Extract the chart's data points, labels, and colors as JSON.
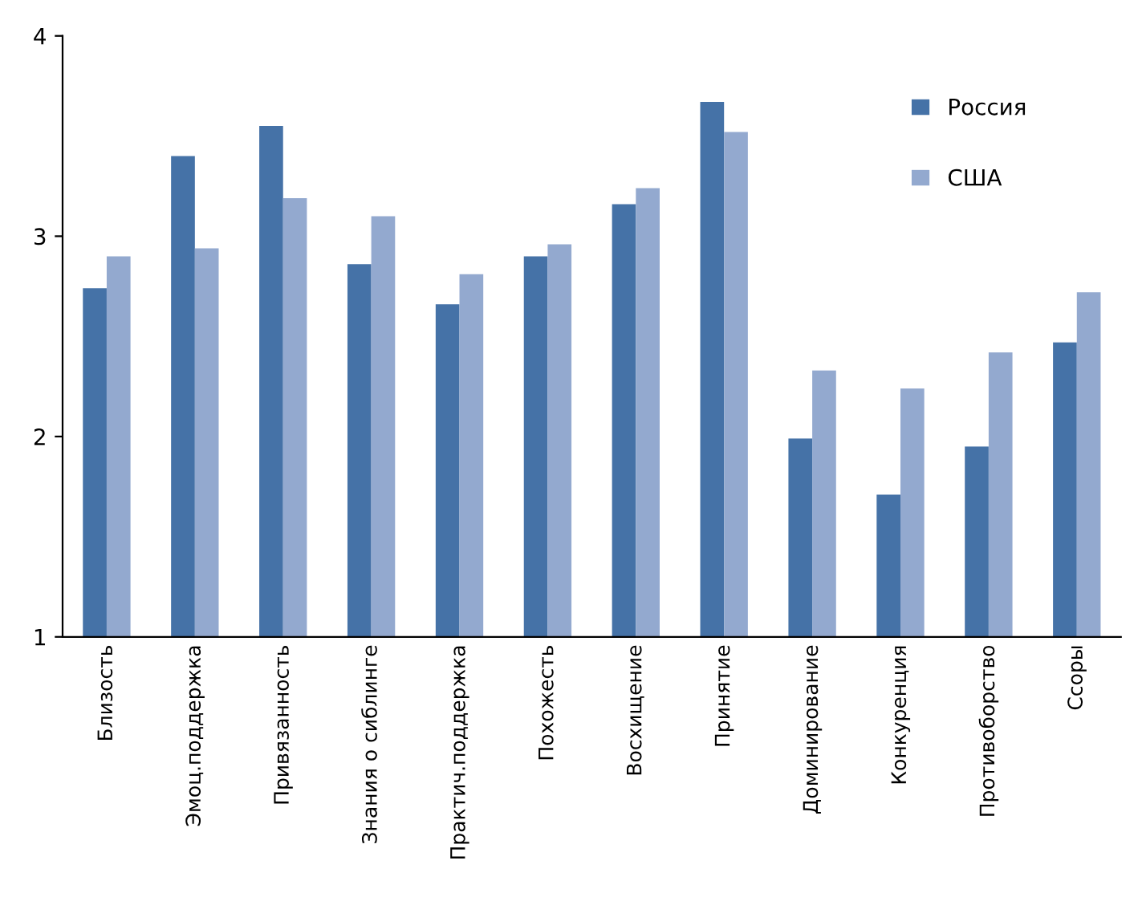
{
  "chart_data": {
    "type": "bar",
    "categories": [
      "Близость",
      "Эмоц.поддержка",
      "Привязанность",
      "Знания о сиблинге",
      "Практич.поддержка",
      "Похожесть",
      "Восхищение",
      "Принятие",
      "Доминирование",
      "Конкуренция",
      "Противоборство",
      "Ссоры"
    ],
    "series": [
      {
        "name": "Россия",
        "color": "#4572a7",
        "values": [
          2.74,
          3.4,
          3.55,
          2.86,
          2.66,
          2.9,
          3.16,
          3.67,
          1.99,
          1.71,
          1.95,
          2.47
        ]
      },
      {
        "name": "США",
        "color": "#93a9cf",
        "values": [
          2.9,
          2.94,
          3.19,
          3.1,
          2.81,
          2.96,
          3.24,
          3.52,
          2.33,
          2.24,
          2.42,
          2.72
        ]
      }
    ],
    "ylim": [
      1,
      4
    ],
    "yticks": [
      1,
      2,
      3,
      4
    ],
    "grid": false,
    "legend": "top right"
  }
}
